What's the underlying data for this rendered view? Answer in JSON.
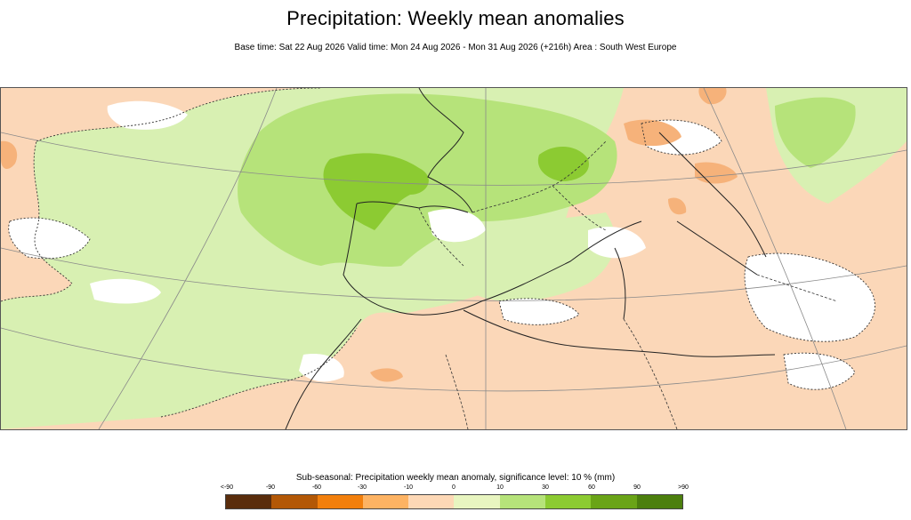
{
  "header": {
    "title": "Precipitation: Weekly mean anomalies",
    "subtitle": "Base time: Sat 22 Aug 2026 Valid time: Mon 24 Aug 2026 - Mon 31 Aug 2026 (+216h) Area : South West Europe"
  },
  "legend": {
    "title": "Sub-seasonal: Precipitation weekly mean anomaly, significance level: 10 % (mm)",
    "ticks": [
      "<-90",
      "-90",
      "-60",
      "-30",
      "-10",
      "0",
      "10",
      "30",
      "60",
      "90",
      ">90"
    ],
    "colors": [
      "#5a2d0c",
      "#b35806",
      "#f27f0c",
      "#fdb363",
      "#fdd8b6",
      "#e8f5c0",
      "#b6e37a",
      "#8ccb32",
      "#6aa417",
      "#4c7f0e"
    ]
  },
  "map": {
    "region": "South West Europe",
    "colors": {
      "ocean_positive": "#d8f0b2",
      "positive_mid": "#b6e37a",
      "positive_strong": "#8ccb32",
      "negative_light": "#fbd7b8",
      "negative_mid": "#f6b27a",
      "neutral": "#ffffff",
      "coastline": "#222222",
      "grid": "#8a8a8a"
    }
  }
}
